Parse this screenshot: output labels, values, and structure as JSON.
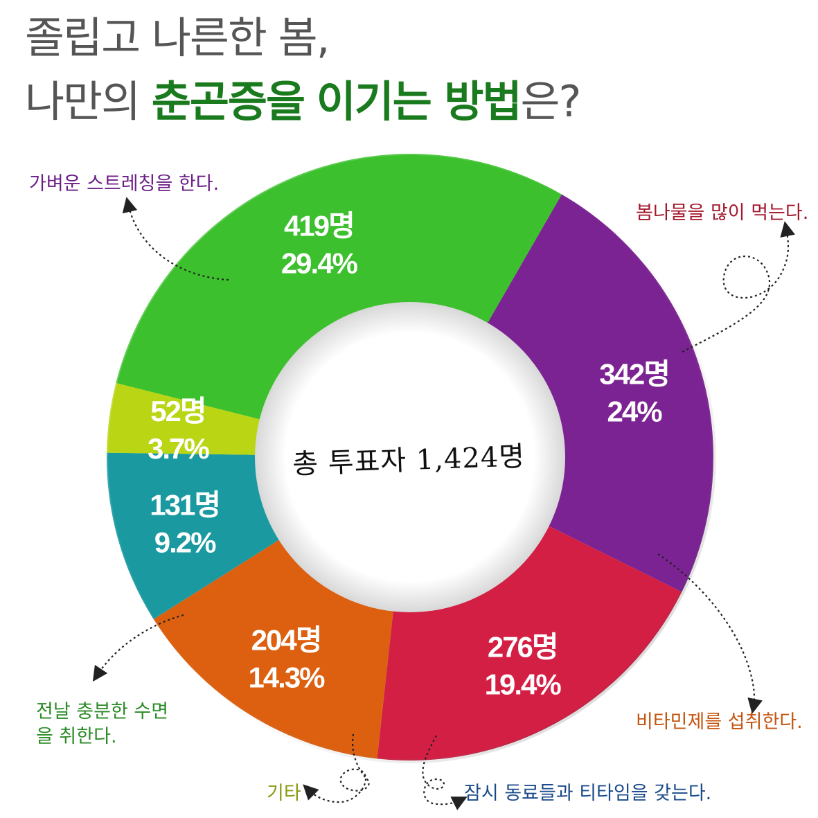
{
  "title": {
    "line1": "졸립고 나른한 봄,",
    "line2_pre": "나만의 ",
    "line2_hl1": "춘곤증을",
    "line2_mid": " ",
    "line2_hl2": "이기는 방법",
    "line2_post": "은?"
  },
  "center_text": "총 투표자 1,424명",
  "chart_data": {
    "type": "pie",
    "variant": "donut",
    "total_label": "총 투표자 1,424명",
    "total": 1424,
    "slices": [
      {
        "label": "가벼운 스트레칭을 한다.",
        "count": 342,
        "count_label": "342명",
        "percent": 24.0,
        "percent_label": "24%",
        "color": "#7b2392",
        "label_color": "#6b1f86"
      },
      {
        "label": "봄나물을 많이 먹는다.",
        "count": 276,
        "count_label": "276명",
        "percent": 19.4,
        "percent_label": "19.4%",
        "color": "#d41f45",
        "label_color": "#a3172c"
      },
      {
        "label": "비타민제를 섭취한다.",
        "count": 204,
        "count_label": "204명",
        "percent": 14.3,
        "percent_label": "14.3%",
        "color": "#dc6010",
        "label_color": "#c55510"
      },
      {
        "label": "잠시 동료들과 티타임을 갖는다.",
        "count": 131,
        "count_label": "131명",
        "percent": 9.2,
        "percent_label": "9.2%",
        "color": "#1a9aa0",
        "label_color": "#1a4a8a"
      },
      {
        "label": "기타",
        "count": 52,
        "count_label": "52명",
        "percent": 3.7,
        "percent_label": "3.7%",
        "color": "#b9d514",
        "label_color": "#8a9a10"
      },
      {
        "label": "전날 충분한 수면을 취한다.",
        "count": 419,
        "count_label": "419명",
        "percent": 29.4,
        "percent_label": "29.4%",
        "color": "#3cc02d",
        "label_color": "#2a8a25"
      }
    ]
  }
}
